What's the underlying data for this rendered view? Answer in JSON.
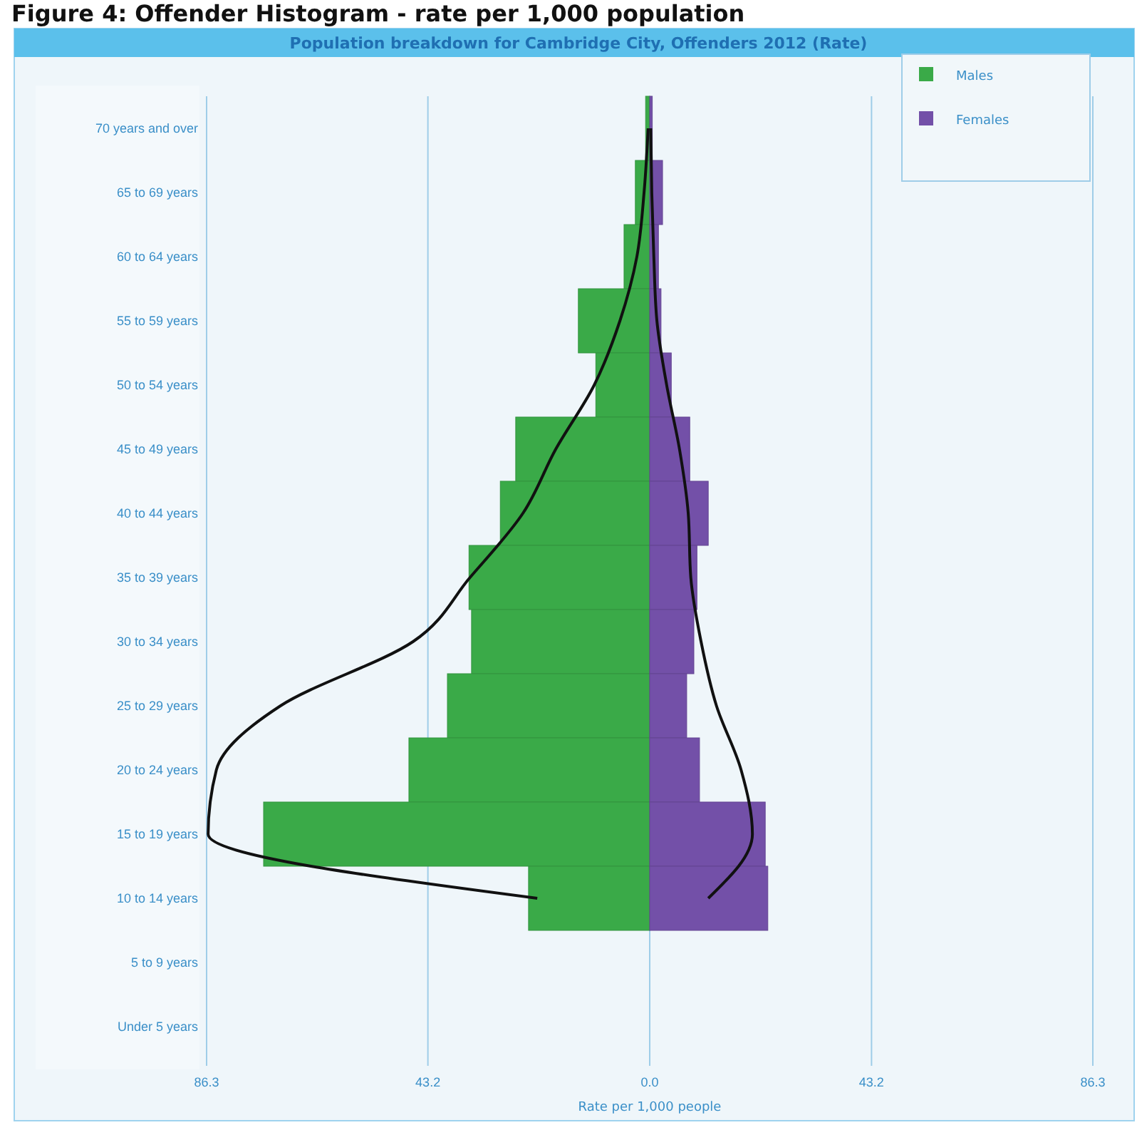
{
  "chart_data": {
    "type": "bar",
    "orientation": "horizontal",
    "stacked": true,
    "title": "Figure 4: Offender Histogram - rate per 1,000 population",
    "subtitle": "Population breakdown for Cambridge City, Offenders 2012 (Rate)",
    "xlabel": "Rate per 1,000 people",
    "categories": [
      "70 years and over",
      "65 to 69 years",
      "60 to 64 years",
      "55 to 59 years",
      "50 to 54 years",
      "45 to 49 years",
      "40 to 44 years",
      "35 to 39 years",
      "30 to 34 years",
      "25 to 29 years",
      "20 to 24 years",
      "15 to 19 years",
      "10 to 14 years",
      "5 to 9 years",
      "Under 5 years"
    ],
    "series": [
      {
        "name": "Males",
        "color": "#3aaa48",
        "values": [
          -0.8,
          -2.8,
          -5.0,
          -13.9,
          -10.5,
          -26.1,
          -29.1,
          -35.2,
          -34.7,
          -39.4,
          -46.9,
          -75.2,
          -23.6,
          0,
          0
        ]
      },
      {
        "name": "Females",
        "color": "#7350a8",
        "values": [
          0.5,
          2.5,
          1.7,
          2.2,
          4.2,
          7.8,
          11.4,
          9.2,
          8.6,
          7.2,
          9.7,
          22.5,
          23.0,
          0,
          0
        ]
      },
      {
        "type": "line",
        "color": "#111111",
        "values": [
          -0.3,
          -1.1,
          -2.5,
          -5.8,
          -10.8,
          -18.3,
          -24.7,
          -35.0,
          -46.1,
          -71.9,
          -84.4,
          -86.0,
          -21.9,
          null,
          null
        ]
      },
      {
        "type": "line",
        "color": "#111111",
        "values": [
          0.2,
          0.4,
          0.8,
          1.4,
          3.3,
          5.8,
          7.5,
          8.0,
          10.0,
          13.0,
          17.8,
          20.0,
          11.4,
          null,
          null
        ]
      }
    ],
    "xlim": [
      -86.3,
      86.3
    ],
    "xticks": [
      {
        "value": -86.3,
        "label": "86.3"
      },
      {
        "value": -43.2,
        "label": "43.2"
      },
      {
        "value": 0,
        "label": "0.0"
      },
      {
        "value": 43.2,
        "label": "43.2"
      },
      {
        "value": 86.3,
        "label": "86.3"
      }
    ],
    "grid": "x",
    "legend": "top right",
    "line_style": "solid",
    "marker": "none"
  }
}
